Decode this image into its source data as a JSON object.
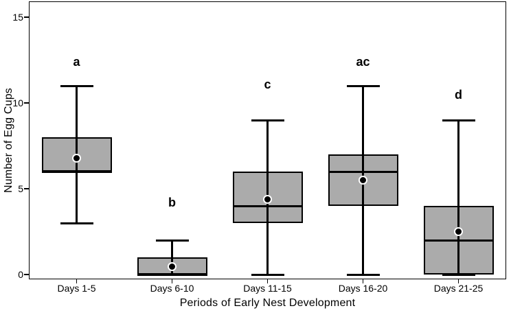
{
  "chart_data": {
    "type": "boxplot",
    "title": "",
    "xlabel": "Periods of Early Nest Development",
    "ylabel": "Number of Egg Cups",
    "ylim": [
      0,
      15
    ],
    "yticks": [
      "0",
      "5",
      "10",
      "15"
    ],
    "grid": false,
    "legend_position": "none",
    "categories": [
      "Days 1-5",
      "Days 6-10",
      "Days 11-15",
      "Days 16-20",
      "Days 21-25"
    ],
    "boxes": [
      {
        "category": "Days 1-5",
        "significance_letter": "a",
        "letter_y": 12.4,
        "whisker_low": 3,
        "q1": 6,
        "median": 6,
        "q3": 8,
        "whisker_high": 11,
        "mean": 6.8
      },
      {
        "category": "Days 6-10",
        "significance_letter": "b",
        "letter_y": 4.2,
        "whisker_low": 0,
        "q1": 0,
        "median": 0,
        "q3": 1,
        "whisker_high": 2,
        "mean": 0.45
      },
      {
        "category": "Days 11-15",
        "significance_letter": "c",
        "letter_y": 11.1,
        "whisker_low": 0,
        "q1": 3,
        "median": 4,
        "q3": 6,
        "whisker_high": 9,
        "mean": 4.4
      },
      {
        "category": "Days 16-20",
        "significance_letter": "ac",
        "letter_y": 12.4,
        "whisker_low": 0,
        "q1": 4,
        "median": 6,
        "q3": 7,
        "whisker_high": 11,
        "mean": 5.5
      },
      {
        "category": "Days 21-25",
        "significance_letter": "d",
        "letter_y": 10.5,
        "whisker_low": 0,
        "q1": 0,
        "median": 2,
        "q3": 4,
        "whisker_high": 9,
        "mean": 2.5
      }
    ],
    "colors": {
      "box_fill": "#ababab",
      "line": "#000000",
      "background": "#ffffff"
    }
  }
}
